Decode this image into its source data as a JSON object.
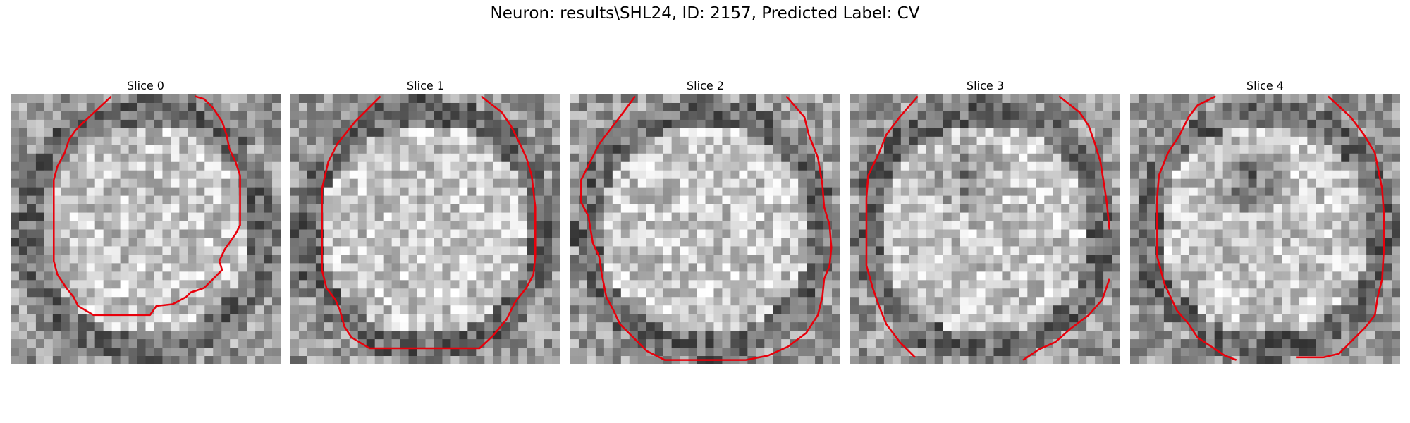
{
  "figure": {
    "title": "Neuron: results\\SHL24, ID: 2157, Predicted Label: CV"
  },
  "slices": [
    {
      "label": "Slice 0",
      "seed": 11,
      "center_dark": 0
    },
    {
      "label": "Slice 1",
      "seed": 27,
      "center_dark": 0
    },
    {
      "label": "Slice 2",
      "seed": 43,
      "center_dark": 0
    },
    {
      "label": "Slice 3",
      "seed": 59,
      "center_dark": 0.5
    },
    {
      "label": "Slice 4",
      "seed": 71,
      "center_dark": 0.7
    }
  ],
  "colors": {
    "contour": "#e8000b",
    "background": "#ffffff"
  },
  "image": {
    "colormap": "gray",
    "grid_size": 32
  }
}
